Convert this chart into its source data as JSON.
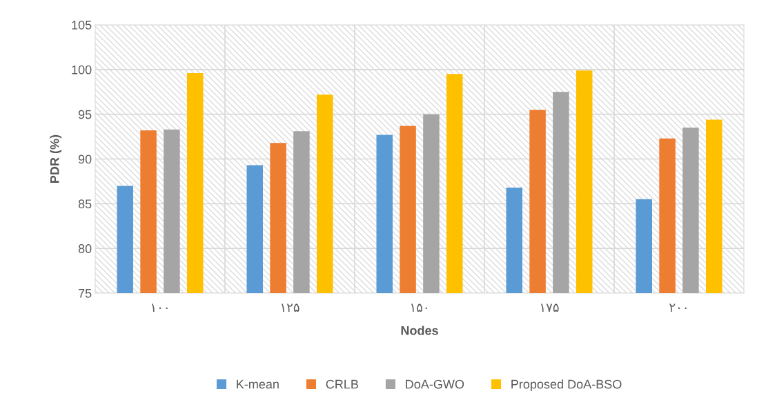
{
  "chart_data": {
    "type": "bar",
    "xlabel": "Nodes",
    "ylabel": "PDR (%)",
    "categories": [
      "۱۰۰",
      "۱۲۵",
      "۱۵۰",
      "۱۷۵",
      "۲۰۰"
    ],
    "series": [
      {
        "name": "K-mean",
        "color": "#5b9bd5",
        "values": [
          87.0,
          89.3,
          92.7,
          86.8,
          85.5
        ]
      },
      {
        "name": "CRLB",
        "color": "#ed7d31",
        "values": [
          93.2,
          91.8,
          93.7,
          95.5,
          92.3
        ]
      },
      {
        "name": "DoA-GWO",
        "color": "#a5a5a5",
        "values": [
          93.3,
          93.1,
          95.0,
          97.5,
          93.5
        ]
      },
      {
        "name": "Proposed DoA-BSO",
        "color": "#ffc000",
        "values": [
          99.6,
          97.2,
          99.5,
          99.9,
          94.4
        ]
      }
    ],
    "ylim": [
      75,
      105
    ],
    "yticks": [
      75,
      80,
      85,
      90,
      95,
      100,
      105
    ],
    "grid": true,
    "legend": "bottom"
  }
}
